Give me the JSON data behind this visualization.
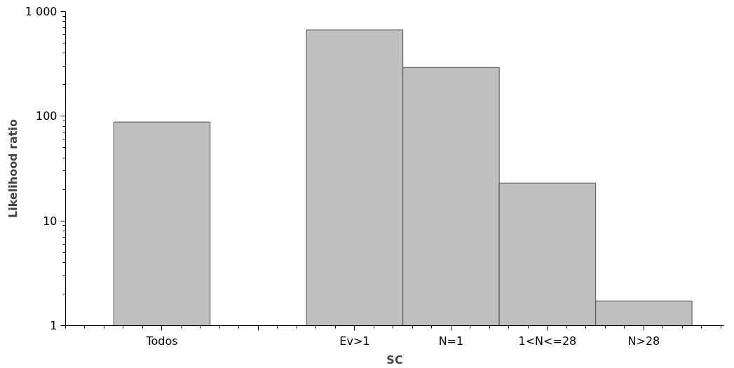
{
  "chart_data": {
    "type": "bar",
    "xlabel": "SC",
    "ylabel": "Likelihood ratio",
    "categories": [
      "Todos",
      null,
      "Ev>1",
      "N=1",
      "1<N<=28",
      "N>28"
    ],
    "values": [
      88,
      null,
      667,
      292,
      23,
      1.72
    ],
    "color": "#c0c0c0",
    "log": true,
    "ylim": [
      1,
      1000
    ],
    "yticks": [
      1,
      10,
      100,
      {
        "value": 1000,
        "label": "1 000"
      }
    ],
    "grid": false
  }
}
